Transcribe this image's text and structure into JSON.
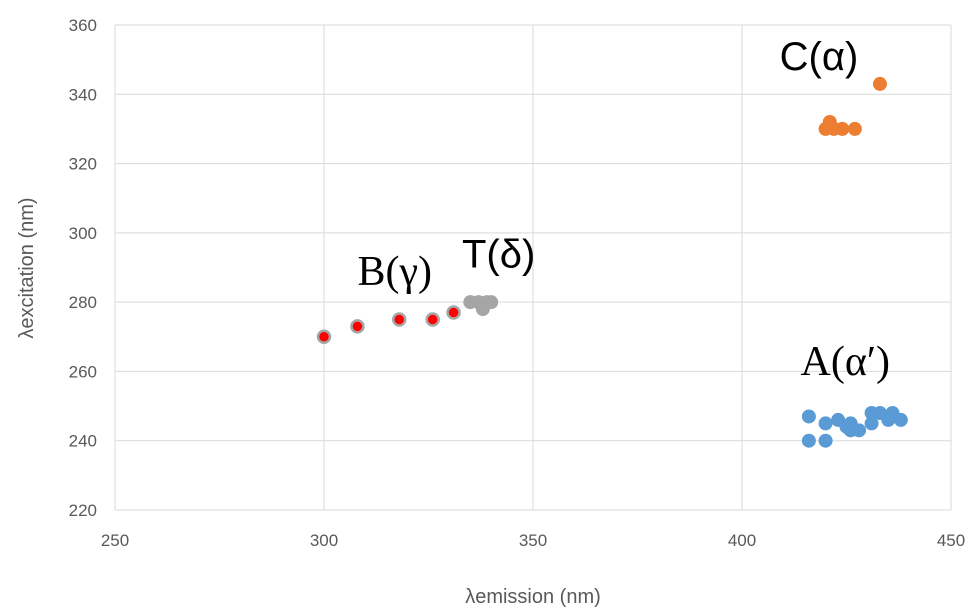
{
  "chart_data": {
    "type": "scatter",
    "title": "",
    "xlabel": "λemission (nm)",
    "ylabel": "λexcitation (nm)",
    "xlim": [
      250,
      450
    ],
    "ylim": [
      220,
      360
    ],
    "x_ticks": [
      250,
      300,
      350,
      400,
      450
    ],
    "y_ticks": [
      220,
      240,
      260,
      280,
      300,
      320,
      340,
      360
    ],
    "grid": true,
    "legend": "none",
    "series": [
      {
        "label": "B(γ)",
        "color": "#ff0000",
        "edge_color": "#a6a6a6",
        "points": [
          [
            300,
            270
          ],
          [
            308,
            273
          ],
          [
            318,
            275
          ],
          [
            326,
            275
          ],
          [
            331,
            277
          ]
        ]
      },
      {
        "label": "T(δ)",
        "color": "#a5a5a5",
        "points": [
          [
            335,
            280
          ],
          [
            337,
            280
          ],
          [
            338,
            278
          ],
          [
            339,
            280
          ],
          [
            340,
            280
          ]
        ]
      },
      {
        "label": "C(α)",
        "color": "#ed7d31",
        "points": [
          [
            420,
            330
          ],
          [
            421,
            332
          ],
          [
            422,
            330
          ],
          [
            424,
            330
          ],
          [
            427,
            330
          ],
          [
            433,
            343
          ]
        ]
      },
      {
        "label": "A(α′)",
        "color": "#5b9bd5",
        "points": [
          [
            416,
            247
          ],
          [
            416,
            240
          ],
          [
            420,
            245
          ],
          [
            420,
            240
          ],
          [
            423,
            246
          ],
          [
            425,
            244
          ],
          [
            426,
            243
          ],
          [
            426,
            245
          ],
          [
            428,
            243
          ],
          [
            431,
            245
          ],
          [
            431,
            248
          ],
          [
            433,
            248
          ],
          [
            435,
            246
          ],
          [
            436,
            248
          ],
          [
            438,
            246
          ]
        ]
      }
    ],
    "annotations": [
      {
        "text": "B(γ)",
        "x": 308,
        "y": 285,
        "font": "serif"
      },
      {
        "text": "T(δ)",
        "x": 333,
        "y": 290,
        "font": "sans"
      },
      {
        "text": "C(α)",
        "x": 409,
        "y": 347,
        "font": "sans"
      },
      {
        "text": "A(α′)",
        "x": 414,
        "y": 259,
        "font": "serif"
      }
    ]
  }
}
